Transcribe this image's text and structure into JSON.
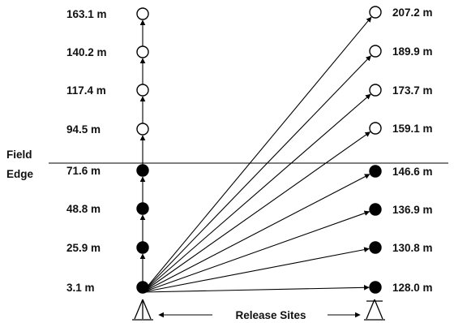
{
  "left_column": {
    "labels": [
      "163.1 m",
      "140.2 m",
      "117.4 m",
      "94.5 m",
      "71.6 m",
      "48.8 m",
      "25.9 m",
      "3.1 m"
    ],
    "fills": [
      "open",
      "open",
      "open",
      "open",
      "filled",
      "filled",
      "filled",
      "filled"
    ]
  },
  "right_column": {
    "labels": [
      "207.2 m",
      "189.9 m",
      "173.7 m",
      "159.1 m",
      "146.6 m",
      "136.9 m",
      "130.8 m",
      "128.0 m"
    ],
    "fills": [
      "open",
      "open",
      "open",
      "open",
      "filled",
      "filled",
      "filled",
      "filled"
    ]
  },
  "field_edge": {
    "line1": "Field",
    "line2": "Edge"
  },
  "release_sites": {
    "label": "Release Sites"
  },
  "colors": {
    "ink": "#000000",
    "background": "#ffffff"
  }
}
